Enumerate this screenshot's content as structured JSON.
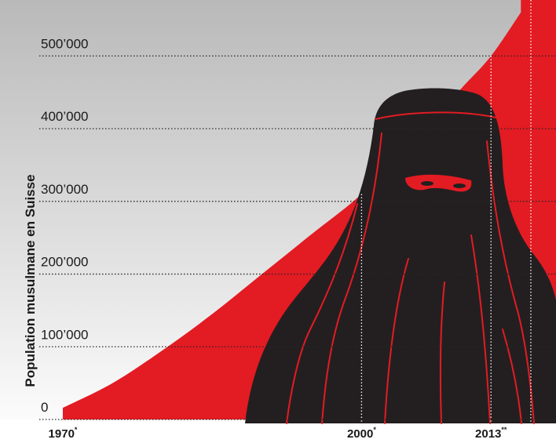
{
  "chart_data": {
    "type": "area",
    "title": "",
    "xlabel": "",
    "ylabel": "Population musulmane en Suisse",
    "x": [
      1970,
      1975,
      1980,
      1985,
      1990,
      1995,
      2000,
      2005,
      2010,
      2013,
      2016
    ],
    "values": [
      16000,
      50000,
      95000,
      145000,
      200000,
      255000,
      310000,
      380000,
      455000,
      500000,
      560000
    ],
    "xlim": [
      1970,
      2020
    ],
    "ylim": [
      0,
      550000
    ],
    "yticks": [
      {
        "value": 0,
        "label": "0"
      },
      {
        "value": 100000,
        "label": "100’000"
      },
      {
        "value": 200000,
        "label": "200’000"
      },
      {
        "value": 300000,
        "label": "300’000"
      },
      {
        "value": 400000,
        "label": "400’000"
      },
      {
        "value": 500000,
        "label": "500’000"
      }
    ],
    "xticks": [
      {
        "value": 1970,
        "label": "1970",
        "marker": "*"
      },
      {
        "value": 2000,
        "label": "2000",
        "marker": "*"
      },
      {
        "value": 2013,
        "label": "2013",
        "marker": "**"
      }
    ],
    "reference_lines_x": [
      2000,
      2013,
      2017
    ],
    "grid": true,
    "colors": {
      "area": "#e31b23",
      "background_top": "#b9b9b9",
      "background_bottom": "#ffffff",
      "text": "#1a1a1a",
      "silhouette": "#231f20"
    },
    "illustration": "niqab-silhouette"
  }
}
